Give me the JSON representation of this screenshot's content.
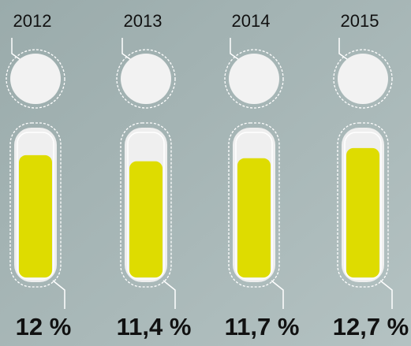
{
  "chart_data": {
    "type": "bar",
    "categories": [
      "2012",
      "2013",
      "2014",
      "2015"
    ],
    "values": [
      12,
      11.4,
      11.7,
      12.7
    ],
    "value_labels": [
      "12 %",
      "11,4 %",
      "11,7 %",
      "12,7 %"
    ],
    "color": "#dedc00",
    "ylim": [
      0,
      13
    ]
  }
}
